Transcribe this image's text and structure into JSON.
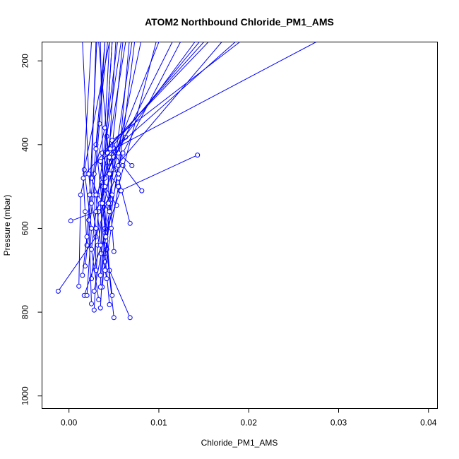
{
  "chart_data": {
    "type": "line",
    "title": "ATOM2 Northbound Chloride_PM1_AMS",
    "xlabel": "Chloride_PM1_AMS",
    "ylabel": "Pressure (mbar)",
    "xlim": [
      -0.003,
      0.041
    ],
    "ylim": [
      1030,
      155
    ],
    "y_reversed": true,
    "grid": false,
    "x_ticks": [
      0.0,
      0.01,
      0.02,
      0.03,
      0.04
    ],
    "x_tick_labels": [
      "0.00",
      "0.01",
      "0.02",
      "0.03",
      "0.04"
    ],
    "y_ticks": [
      200,
      400,
      600,
      800,
      1000
    ],
    "y_tick_labels": [
      "200",
      "400",
      "600",
      "800",
      "1000"
    ],
    "series_color": "#0000ff",
    "series": [
      {
        "x": [
          0.0143,
          0.0057,
          0.0017
        ],
        "y": [
          425,
          510,
          760
        ]
      },
      {
        "x": [
          -0.0012,
          0.003,
          0.006,
          0.0124
        ],
        "y": [
          750,
          620,
          420,
          155
        ]
      },
      {
        "x": [
          0.0068,
          0.0045,
          0.0038,
          0.0035
        ],
        "y": [
          813,
          700,
          500,
          155
        ]
      },
      {
        "x": [
          0.005,
          0.0042,
          0.005,
          0.0275
        ],
        "y": [
          813,
          650,
          410,
          155
        ]
      },
      {
        "x": [
          0.0028,
          0.0032,
          0.0045,
          0.017
        ],
        "y": [
          795,
          640,
          470,
          155
        ]
      },
      {
        "x": [
          0.0011,
          0.0013,
          0.0018,
          0.015
        ],
        "y": [
          738,
          520,
          470,
          155
        ]
      },
      {
        "x": [
          0.0002,
          0.003,
          0.005,
          0.008
        ],
        "y": [
          582,
          560,
          460,
          155
        ]
      },
      {
        "x": [
          0.002,
          0.0025,
          0.0017,
          0.0045
        ],
        "y": [
          760,
          600,
          460,
          155
        ]
      },
      {
        "x": [
          0.0035,
          0.004,
          0.003,
          0.004
        ],
        "y": [
          790,
          600,
          400,
          155
        ]
      },
      {
        "x": [
          0.0045,
          0.004,
          0.0055,
          0.0067
        ],
        "y": [
          782,
          660,
          450,
          155
        ]
      },
      {
        "x": [
          0.0048,
          0.004,
          0.0055,
          0.0073
        ],
        "y": [
          760,
          610,
          470,
          155
        ]
      },
      {
        "x": [
          0.0037,
          0.0045,
          0.0042,
          0.0058
        ],
        "y": [
          740,
          560,
          380,
          155
        ]
      },
      {
        "x": [
          0.0025,
          0.0033,
          0.0048,
          0.0033
        ],
        "y": [
          720,
          560,
          520,
          155
        ]
      },
      {
        "x": [
          0.0018,
          0.0027,
          0.0034,
          0.004
        ],
        "y": [
          690,
          520,
          350,
          155
        ]
      },
      {
        "x": [
          0.003,
          0.0028,
          0.004,
          0.0045
        ],
        "y": [
          700,
          470,
          360,
          155
        ]
      },
      {
        "x": [
          0.004,
          0.0035,
          0.0045,
          0.0052
        ],
        "y": [
          680,
          540,
          410,
          155
        ]
      },
      {
        "x": [
          0.0025,
          0.0022,
          0.003,
          0.0043
        ],
        "y": [
          780,
          580,
          410,
          155
        ]
      },
      {
        "x": [
          0.0035,
          0.0037,
          0.0047,
          0.006
        ],
        "y": [
          740,
          490,
          430,
          155
        ]
      },
      {
        "x": [
          0.005,
          0.0046,
          0.0038,
          0.0048
        ],
        "y": [
          655,
          540,
          500,
          155
        ]
      },
      {
        "x": [
          0.0041,
          0.0038,
          0.0043,
          0.0063
        ],
        "y": [
          630,
          480,
          420,
          155
        ]
      },
      {
        "x": [
          0.0068,
          0.0055,
          0.0045,
          0.014
        ],
        "y": [
          588,
          480,
          430,
          155
        ]
      },
      {
        "x": [
          0.0081,
          0.006,
          0.0046,
          0.0145
        ],
        "y": [
          510,
          450,
          410,
          155
        ]
      },
      {
        "x": [
          0.007,
          0.0055,
          0.0048,
          0.019
        ],
        "y": [
          450,
          420,
          390,
          155
        ]
      },
      {
        "x": [
          0.0063,
          0.005,
          0.004,
          0.01
        ],
        "y": [
          382,
          430,
          480,
          155
        ]
      },
      {
        "x": [
          0.0058,
          0.0045,
          0.0037,
          0.0155
        ],
        "y": [
          510,
          470,
          420,
          155
        ]
      },
      {
        "x": [
          0.0053,
          0.004,
          0.0035,
          0.0185
        ],
        "y": [
          545,
          500,
          440,
          155
        ]
      },
      {
        "x": [
          0.0045,
          0.0032,
          0.0025,
          0.003
        ],
        "y": [
          560,
          520,
          480,
          155
        ]
      },
      {
        "x": [
          0.003,
          0.0025,
          0.0022,
          0.0015
        ],
        "y": [
          600,
          540,
          470,
          155
        ]
      },
      {
        "x": [
          0.002,
          0.0018,
          0.0016,
          0.0025
        ],
        "y": [
          640,
          560,
          480,
          155
        ]
      },
      {
        "x": [
          0.0015,
          0.002,
          0.0023,
          0.0031
        ],
        "y": [
          712,
          620,
          520,
          155
        ]
      },
      {
        "x": [
          0.0035,
          0.0041,
          0.0037,
          0.0048
        ],
        "y": [
          712,
          620,
          540,
          155
        ]
      },
      {
        "x": [
          0.0033,
          0.0025,
          0.003,
          0.0054
        ],
        "y": [
          770,
          650,
          560,
          155
        ]
      },
      {
        "x": [
          0.0028,
          0.0036,
          0.0044,
          0.007
        ],
        "y": [
          750,
          660,
          540,
          155
        ]
      },
      {
        "x": [
          0.0042,
          0.0035,
          0.003,
          0.0115
        ],
        "y": [
          720,
          640,
          520,
          155
        ]
      },
      {
        "x": [
          0.004,
          0.0047,
          0.0055,
          0.0097
        ],
        "y": [
          700,
          600,
          500,
          155
        ]
      }
    ]
  }
}
